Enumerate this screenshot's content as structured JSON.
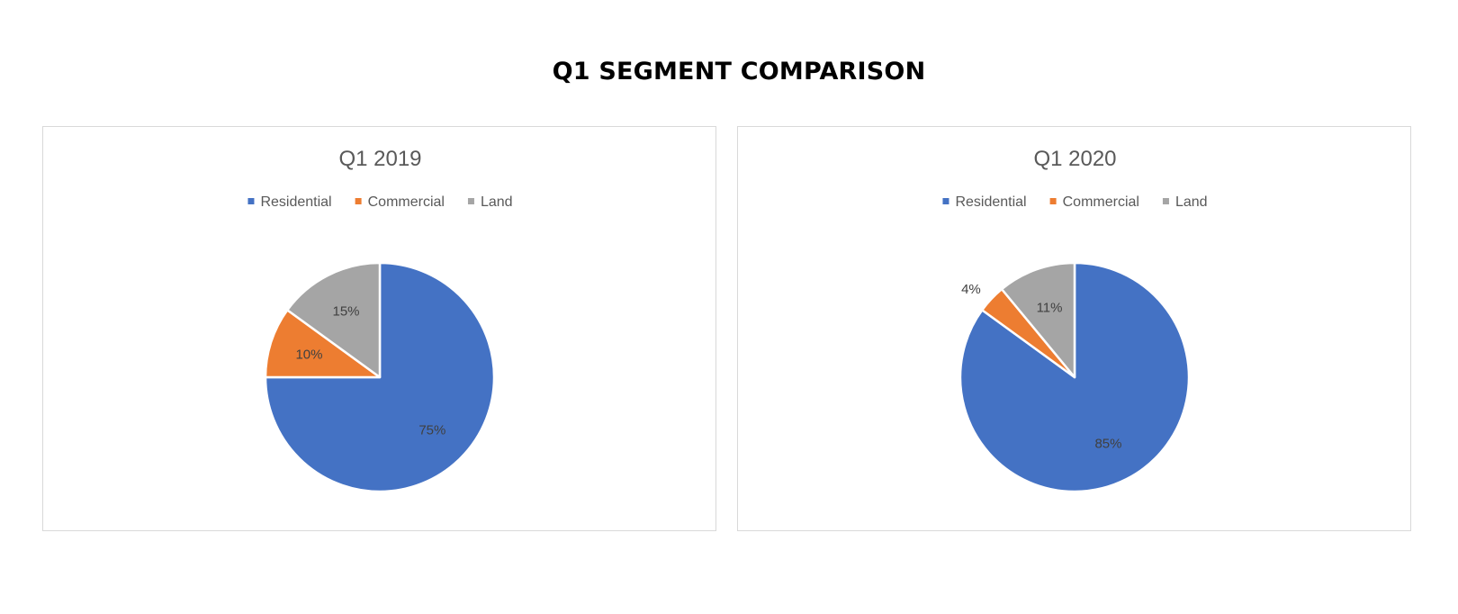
{
  "page": {
    "title": "Q1 SEGMENT COMPARISON"
  },
  "colors": {
    "Residential": "#4472c4",
    "Commercial": "#ed7d31",
    "Land": "#a5a5a5"
  },
  "chart_data": [
    {
      "type": "pie",
      "title": "Q1 2019",
      "categories": [
        "Residential",
        "Commercial",
        "Land"
      ],
      "values": [
        75,
        10,
        15
      ],
      "data_labels": [
        "75%",
        "10%",
        "15%"
      ],
      "legend": "top"
    },
    {
      "type": "pie",
      "title": "Q1 2020",
      "categories": [
        "Residential",
        "Commercial",
        "Land"
      ],
      "values": [
        85,
        4,
        11
      ],
      "data_labels": [
        "85%",
        "4%",
        "11%"
      ],
      "legend": "top"
    }
  ]
}
